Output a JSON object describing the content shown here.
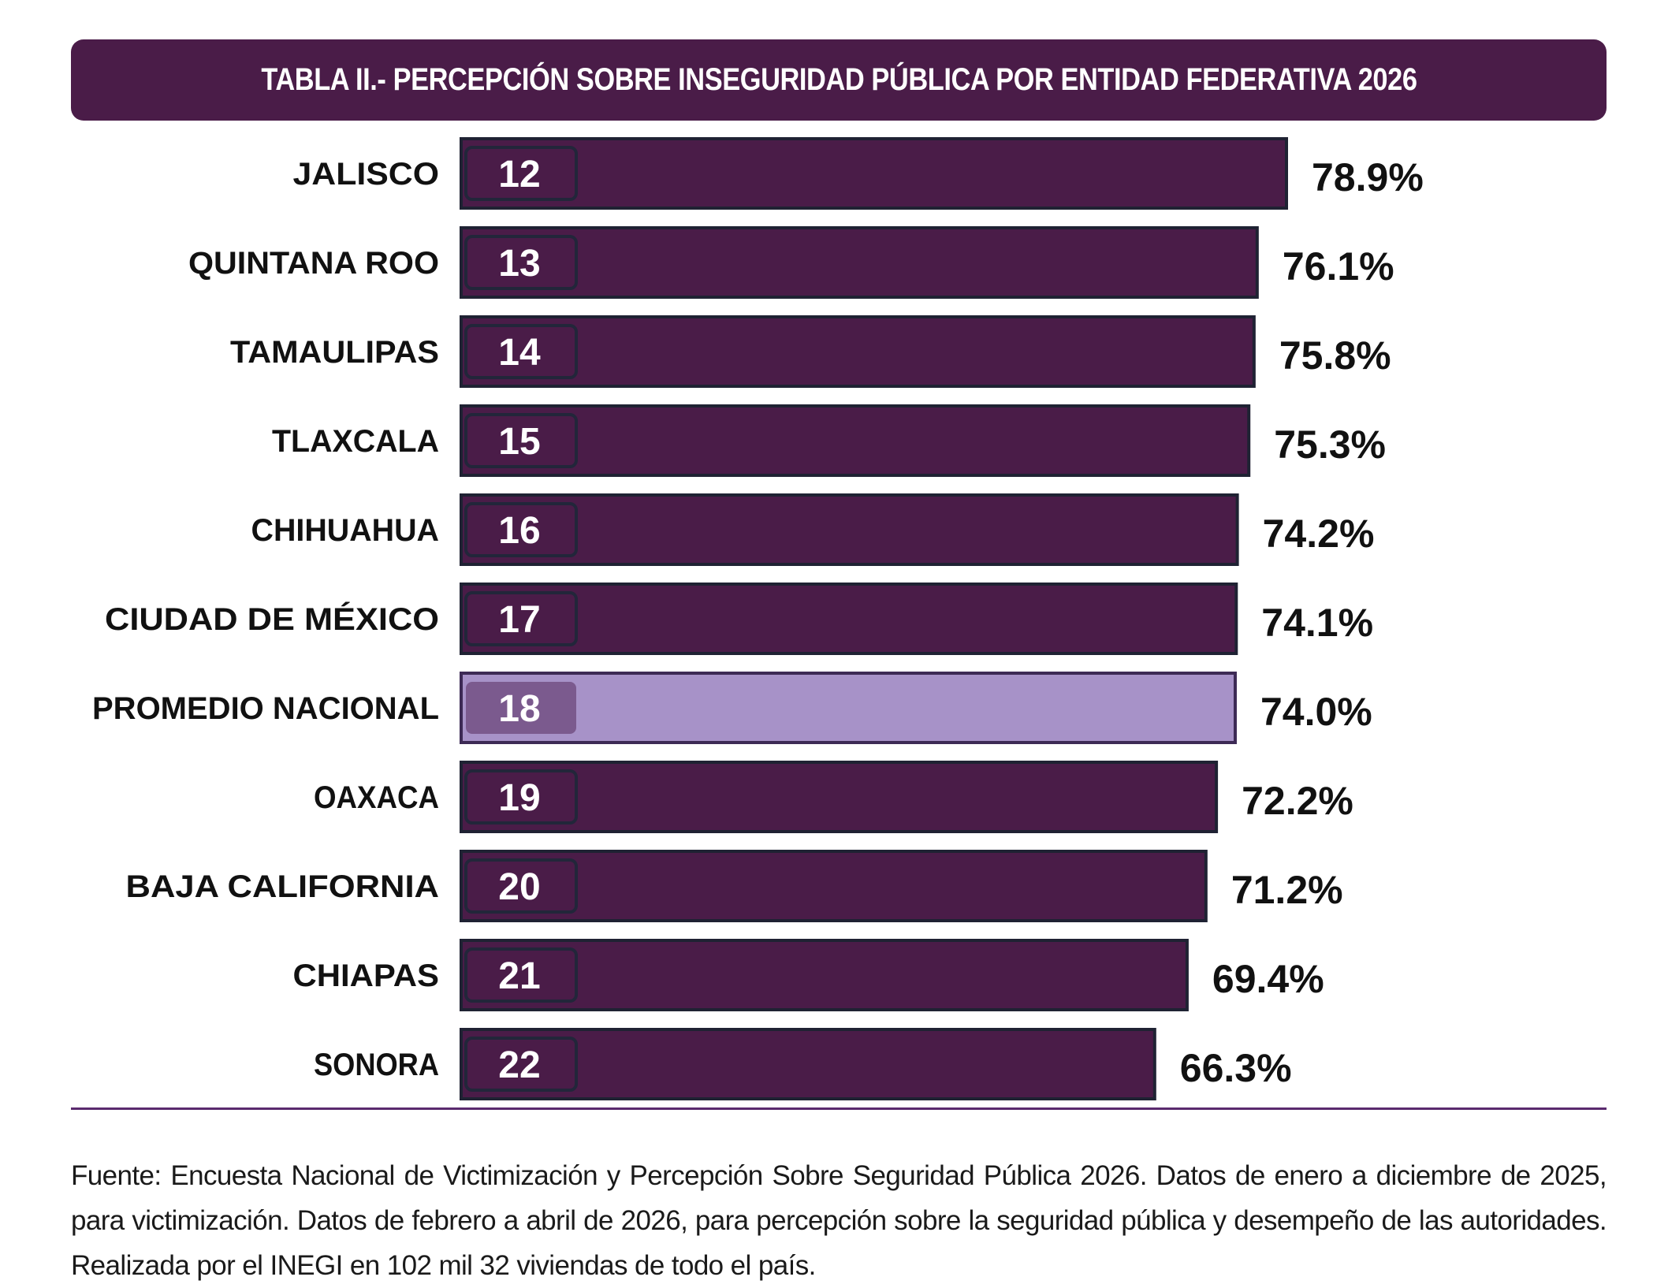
{
  "chart_data": {
    "type": "bar",
    "orientation": "horizontal",
    "title": "TABLA II.- PERCEPCIÓN SOBRE INSEGURIDAD PÚBLICA POR ENTIDAD FEDERATIVA 2026",
    "categories": [
      "JALISCO",
      "QUINTANA ROO",
      "TAMAULIPAS",
      "TLAXCALA",
      "CHIHUAHUA",
      "CIUDAD DE MÉXICO",
      "PROMEDIO NACIONAL",
      "OAXACA",
      "BAJA CALIFORNIA",
      "CHIAPAS",
      "SONORA"
    ],
    "ranks": [
      "12",
      "13",
      "14",
      "15",
      "16",
      "17",
      "18",
      "19",
      "20",
      "21",
      "22"
    ],
    "values": [
      78.9,
      76.1,
      75.8,
      75.3,
      74.2,
      74.1,
      74.0,
      72.2,
      71.2,
      69.4,
      66.3
    ],
    "value_labels": [
      "78.9%",
      "76.1%",
      "75.8%",
      "75.3%",
      "74.2%",
      "74.1%",
      "74.0%",
      "72.2%",
      "71.2%",
      "69.4%",
      "66.3%"
    ],
    "highlight_category": "PROMEDIO NACIONAL",
    "xlim": [
      0,
      100
    ],
    "grid": false,
    "legend": "none"
  },
  "colors": {
    "bar": "#4a1c48",
    "bar_border": "#1f2233",
    "highlight_bar": "#a792c8",
    "highlight_rank_box": "#7b5a8e",
    "title_bg": "#4a1c48",
    "divider": "#5a2a6e"
  },
  "footer": {
    "source": "Fuente: Encuesta Nacional de Victimización y Percepción Sobre Seguridad Pública 2026. Datos de enero a diciembre de 2025, para victimización. Datos de febrero a abril de 2026, para percepción sobre la seguridad pública y desempeño de las autoridades. Realizada por el INEGI en 102 mil 32 viviendas de todo el país."
  }
}
